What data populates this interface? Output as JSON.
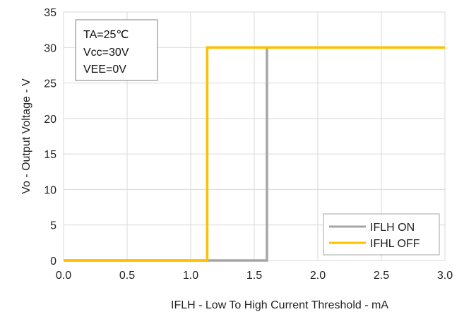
{
  "chart_data": {
    "type": "line",
    "xlabel": "IFLH - Low To High Current Threshold - mA",
    "ylabel": "Vo - Output Voltage - V",
    "xlim": [
      0.0,
      3.0
    ],
    "ylim": [
      0,
      35
    ],
    "x_ticks": [
      "0.0",
      "0.5",
      "1.0",
      "1.5",
      "2.0",
      "2.5",
      "3.0"
    ],
    "y_ticks": [
      "0",
      "5",
      "10",
      "15",
      "20",
      "25",
      "30",
      "35"
    ],
    "grid": true,
    "legend_position": "bottom-right",
    "conditions": [
      "TA=25℃",
      "Vcc=30V",
      "VEE=0V"
    ],
    "series": [
      {
        "name": "IFLH ON",
        "color": "#a6a6a6",
        "x": [
          0.0,
          1.6,
          1.6,
          3.0
        ],
        "y": [
          0,
          0,
          30,
          30
        ]
      },
      {
        "name": "IFHL OFF",
        "color": "#ffc000",
        "x": [
          0.0,
          1.13,
          1.13,
          3.0
        ],
        "y": [
          0,
          0,
          30,
          30
        ]
      }
    ]
  }
}
